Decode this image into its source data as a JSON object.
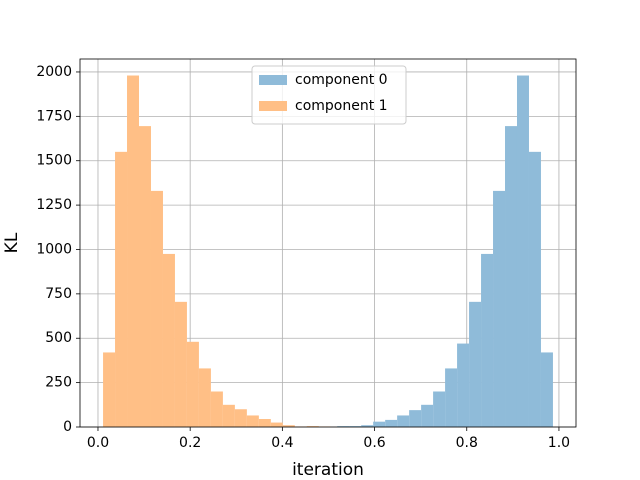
{
  "chart_data": {
    "type": "histogram",
    "xlabel": "iteration",
    "ylabel": "KL",
    "series": [
      {
        "name": "component 0",
        "color": "#8fbbd9",
        "bins": [
          0.467,
          0.493,
          0.519,
          0.545,
          0.571,
          0.597,
          0.623,
          0.649,
          0.675,
          0.701,
          0.727,
          0.753,
          0.779,
          0.805,
          0.831,
          0.857,
          0.883,
          0.909,
          0.935,
          0.961,
          0.987
        ],
        "values": [
          1,
          2,
          5,
          5,
          10,
          30,
          40,
          65,
          95,
          125,
          200,
          330,
          470,
          705,
          975,
          1330,
          1695,
          1980,
          1550,
          420
        ]
      },
      {
        "name": "component 1",
        "color": "#ffbf86",
        "bins": [
          0.011,
          0.037,
          0.063,
          0.089,
          0.115,
          0.141,
          0.167,
          0.193,
          0.219,
          0.245,
          0.271,
          0.297,
          0.323,
          0.349,
          0.375,
          0.401,
          0.427,
          0.453,
          0.479,
          0.505,
          0.531
        ],
        "values": [
          420,
          1550,
          1980,
          1695,
          1330,
          975,
          705,
          480,
          330,
          200,
          125,
          100,
          65,
          45,
          25,
          10,
          3,
          5,
          3,
          1
        ]
      }
    ],
    "xlim": [
      -0.039,
      1.037
    ],
    "ylim": [
      0,
      2073
    ],
    "xticks": [
      {
        "value": 0,
        "label": "0.0"
      },
      0.2,
      0.4,
      0.6,
      0.8,
      {
        "value": 1,
        "label": "1.0"
      }
    ],
    "yticks": [
      0,
      250,
      500,
      750,
      1000,
      1250,
      1500,
      1750,
      2000
    ],
    "grid": true,
    "legend": "upper center"
  }
}
